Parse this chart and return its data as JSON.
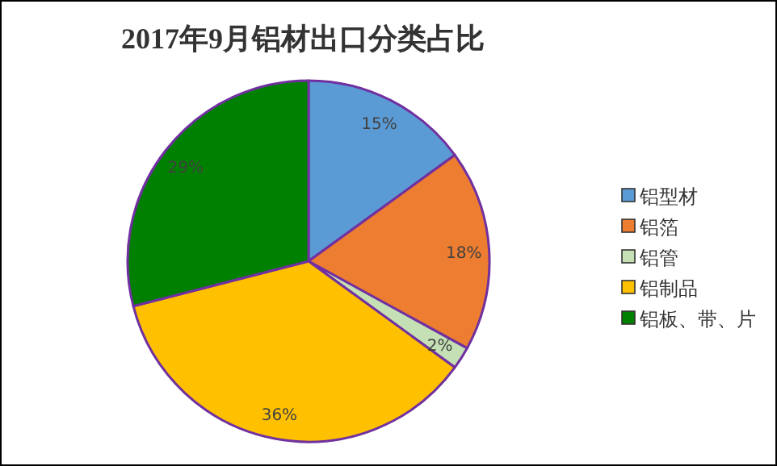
{
  "chart_data": {
    "type": "pie",
    "title": "2017年9月铝材出口分类占比",
    "categories": [
      "铝型材",
      "铝箔",
      "铝管",
      "铝制品",
      "铝板、带、片"
    ],
    "values": [
      15,
      18,
      2,
      36,
      29
    ],
    "colors": [
      "#5b9bd5",
      "#ed7d31",
      "#c5e0b4",
      "#ffc000",
      "#008000"
    ],
    "value_labels": [
      "15%",
      "18%",
      "2%",
      "36%",
      "29%"
    ],
    "legend": "right"
  }
}
